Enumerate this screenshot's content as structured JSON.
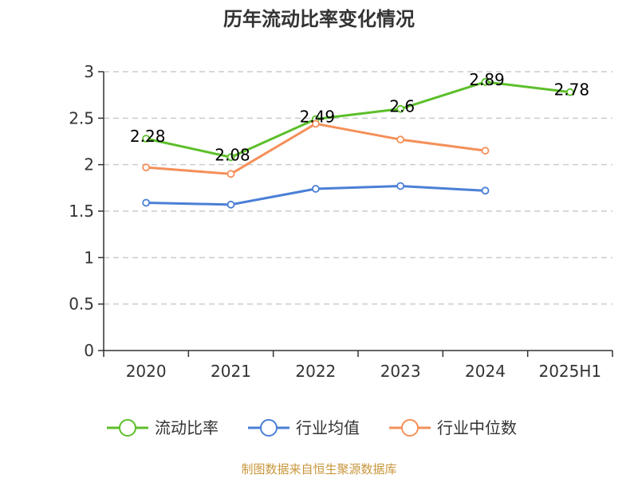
{
  "chart_data": {
    "type": "line",
    "title": "历年流动比率变化情况",
    "categories": [
      "2020",
      "2021",
      "2022",
      "2023",
      "2024",
      "2025H1"
    ],
    "ylim": [
      0,
      3
    ],
    "yticks": [
      "0",
      "0.5",
      "1",
      "1.5",
      "2",
      "2.5",
      "3"
    ],
    "grid": true,
    "legend_position": "bottom",
    "series": [
      {
        "name": "流动比率",
        "color": "#5cbf2a",
        "values": [
          2.28,
          2.08,
          2.49,
          2.6,
          2.89,
          2.78
        ],
        "labels": [
          "2.28",
          "2.08",
          "2.49",
          "2.6",
          "2.89",
          "2.78"
        ]
      },
      {
        "name": "行业均值",
        "color": "#4a7fd6",
        "values": [
          1.59,
          1.57,
          1.74,
          1.77,
          1.72,
          null
        ]
      },
      {
        "name": "行业中位数",
        "color": "#f4905a",
        "values": [
          1.97,
          1.9,
          2.44,
          2.27,
          2.15,
          null
        ]
      }
    ]
  },
  "source": "制图数据来自恒生聚源数据库"
}
